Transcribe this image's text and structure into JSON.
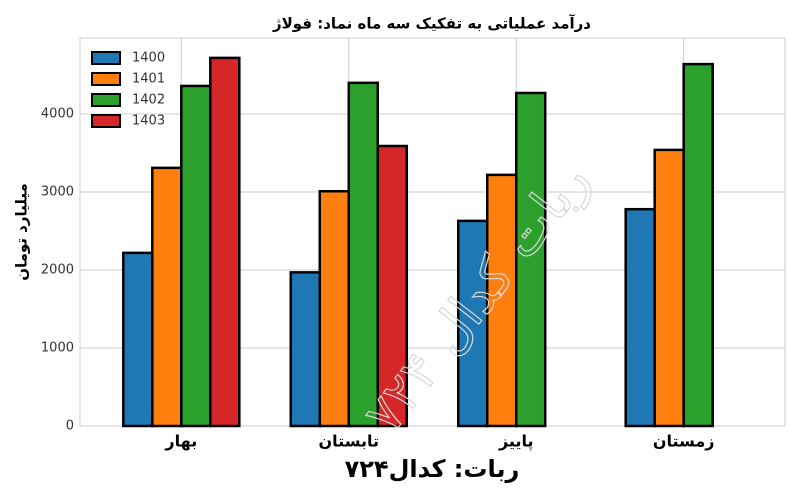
{
  "chart_data": {
    "type": "bar",
    "title": "درآمد عملیاتی به تفکیک سه ماه نماد: فولاژ",
    "y_label": "میلیارد تومان",
    "x_label": "ربات: کدال۷۲۴",
    "watermark": "ربات کدال ۷۲۴",
    "categories": [
      "بهار",
      "تابستان",
      "پاییز",
      "زمستان"
    ],
    "series": [
      {
        "name": "1400",
        "color": "#1f77b4",
        "values": [
          2220,
          1970,
          2630,
          2780
        ]
      },
      {
        "name": "1401",
        "color": "#ff7f0e",
        "values": [
          3310,
          3010,
          3220,
          3540
        ]
      },
      {
        "name": "1402",
        "color": "#2ca02c",
        "values": [
          4360,
          4400,
          4270,
          4640
        ]
      },
      {
        "name": "1403",
        "color": "#d62728",
        "values": [
          4720,
          3590,
          0,
          0
        ]
      }
    ],
    "ylim": [
      0,
      4975
    ],
    "yticks": [
      0,
      1000,
      2000,
      3000,
      4000
    ],
    "grid": true,
    "legend": "upper-left"
  }
}
